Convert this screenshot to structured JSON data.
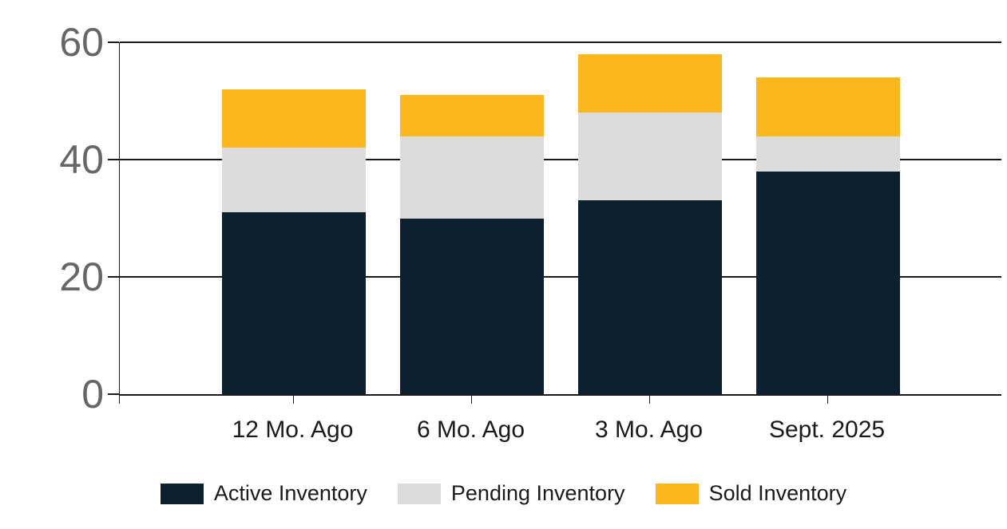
{
  "chart_data": {
    "type": "bar",
    "stacked": true,
    "title": "",
    "xlabel": "",
    "ylabel": "",
    "categories": [
      "12 Mo. Ago",
      "6 Mo. Ago",
      "3 Mo. Ago",
      "Sept. 2025"
    ],
    "series": [
      {
        "name": "Active Inventory",
        "color": "#0d202e",
        "values": [
          31,
          30,
          33,
          38
        ]
      },
      {
        "name": "Pending Inventory",
        "color": "#dcdcdc",
        "values": [
          11,
          14,
          15,
          6
        ]
      },
      {
        "name": "Sold Inventory",
        "color": "#fbb81c",
        "values": [
          10,
          7,
          10,
          10
        ]
      }
    ],
    "totals": [
      52,
      51,
      58,
      54
    ],
    "ylim": [
      0,
      60
    ],
    "yticks": [
      0,
      20,
      40,
      60
    ],
    "grid": true,
    "legend_position": "bottom"
  },
  "colors": {
    "background": "#ffffff",
    "axis_line": "#1a1a1a",
    "y_tick_label": "#666666",
    "x_tick_label": "#1a1a1a",
    "legend_text": "#1a1a1a"
  }
}
